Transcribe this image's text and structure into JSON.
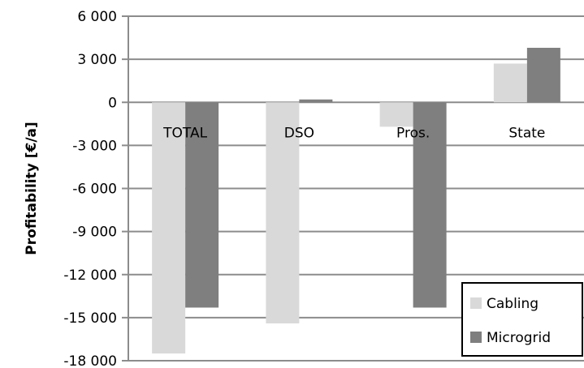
{
  "chart_data": {
    "type": "bar",
    "title": "",
    "xlabel": "",
    "ylabel": "Profitability [€/a]",
    "categories": [
      "TOTAL",
      "DSO",
      "Pros.",
      "State"
    ],
    "series": [
      {
        "name": "Cabling",
        "color": "#d9d9d9",
        "values": [
          -17500,
          -15400,
          -1700,
          2700
        ]
      },
      {
        "name": "Microgrid",
        "color": "#7f7f7f",
        "values": [
          -14300,
          200,
          -14300,
          3800
        ]
      }
    ],
    "ylim": [
      -18000,
      6000
    ],
    "yticks": [
      6000,
      3000,
      0,
      -3000,
      -6000,
      -9000,
      -12000,
      -15000,
      -18000
    ],
    "ytick_labels": [
      "6 000",
      "3 000",
      "0",
      "-3 000",
      "-6 000",
      "-9 000",
      "-12 000",
      "-15 000",
      "-18 000"
    ],
    "grid": true,
    "legend_position": "bottom-right"
  }
}
